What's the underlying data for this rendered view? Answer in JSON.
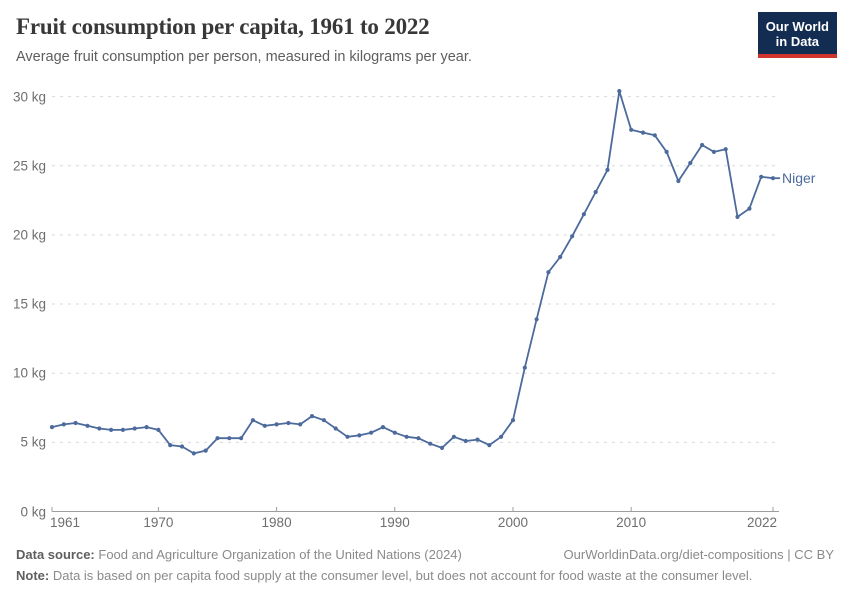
{
  "header": {
    "title": "Fruit consumption per capita, 1961 to 2022",
    "subtitle": "Average fruit consumption per person, measured in kilograms per year."
  },
  "logo": {
    "line1": "Our World",
    "line2": "in Data"
  },
  "chart_data": {
    "type": "line",
    "title": "Fruit consumption per capita, 1961 to 2022",
    "xlabel": "",
    "ylabel": "",
    "unit": "kg",
    "xlim": [
      1961,
      2022
    ],
    "ylim": [
      0,
      30
    ],
    "yticks": [
      0,
      5,
      10,
      15,
      20,
      25,
      30
    ],
    "ytick_suffix": " kg",
    "xticks": [
      1961,
      1970,
      1980,
      1990,
      2000,
      2010,
      2022
    ],
    "grid": "horizontal-dashed",
    "legend_position": "end-of-line-label",
    "series": [
      {
        "name": "Niger",
        "color": "#4c6a9c",
        "x": [
          1961,
          1962,
          1963,
          1964,
          1965,
          1966,
          1967,
          1968,
          1969,
          1970,
          1971,
          1972,
          1973,
          1974,
          1975,
          1976,
          1977,
          1978,
          1979,
          1980,
          1981,
          1982,
          1983,
          1984,
          1985,
          1986,
          1987,
          1988,
          1989,
          1990,
          1991,
          1992,
          1993,
          1994,
          1995,
          1996,
          1997,
          1998,
          1999,
          2000,
          2001,
          2002,
          2003,
          2004,
          2005,
          2006,
          2007,
          2008,
          2009,
          2010,
          2011,
          2012,
          2013,
          2014,
          2015,
          2016,
          2017,
          2018,
          2019,
          2020,
          2021,
          2022
        ],
        "values": [
          6.1,
          6.3,
          6.4,
          6.2,
          6.0,
          5.9,
          5.9,
          6.0,
          6.1,
          5.9,
          4.8,
          4.7,
          4.2,
          4.4,
          5.3,
          5.3,
          5.3,
          6.6,
          6.2,
          6.3,
          6.4,
          6.3,
          6.9,
          6.6,
          6.0,
          5.4,
          5.5,
          5.7,
          6.1,
          5.7,
          5.4,
          5.3,
          4.9,
          4.6,
          5.4,
          5.1,
          5.2,
          4.8,
          5.4,
          6.6,
          10.4,
          13.9,
          17.3,
          18.4,
          19.9,
          21.5,
          23.1,
          24.7,
          30.4,
          27.6,
          27.4,
          27.2,
          26.0,
          23.9,
          25.2,
          26.5,
          26.0,
          26.2,
          21.3,
          21.9,
          24.2,
          24.1
        ]
      }
    ]
  },
  "footer": {
    "datasource_label": "Data source:",
    "datasource_text": "Food and Agriculture Organization of the United Nations (2024)",
    "attribution": "OurWorldinData.org/diet-compositions | CC BY",
    "note_label": "Note:",
    "note_text": "Data is based on per capita food supply at the consumer level, but does not account for food waste at the consumer level."
  },
  "colors": {
    "line": "#4c6a9c",
    "grid": "#d9d9d9",
    "axis": "#9e9e9e",
    "logo_bg": "#132c52",
    "logo_stripe": "#d0342c",
    "axis_text": "#6e6e6e"
  }
}
